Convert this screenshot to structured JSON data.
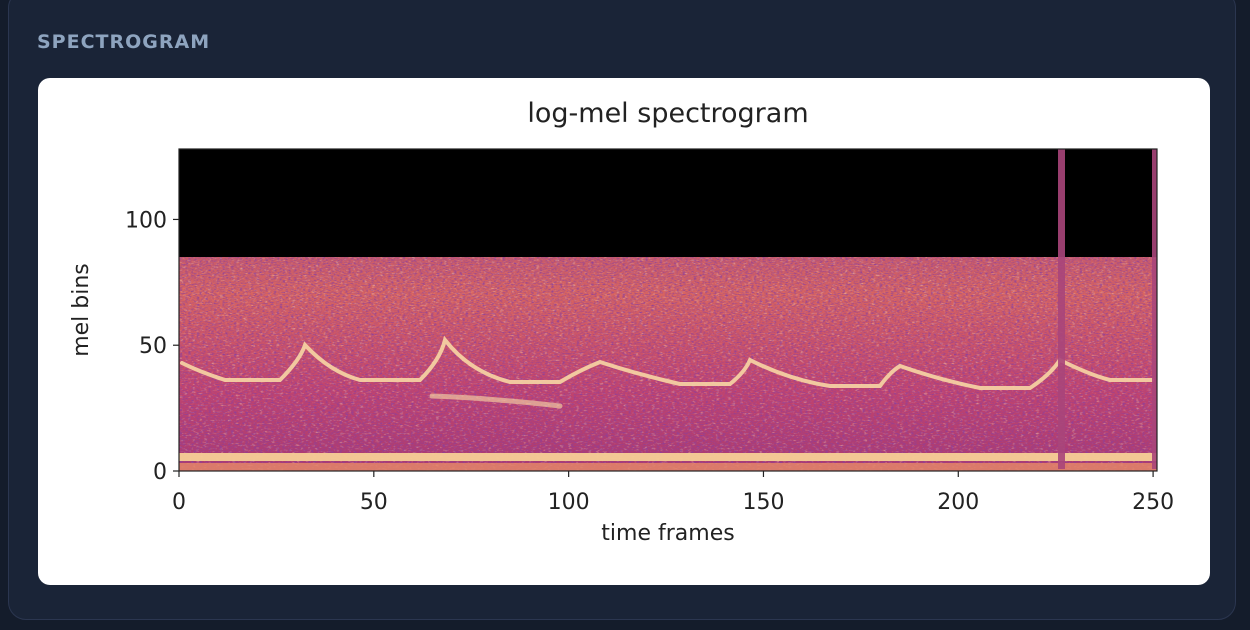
{
  "panel": {
    "title": "SPECTROGRAM"
  },
  "chart_data": {
    "type": "heatmap",
    "title": "log-mel spectrogram",
    "x_label": "time frames",
    "y_label": "mel bins",
    "xlim": [
      0,
      251
    ],
    "ylim": [
      0,
      128
    ],
    "xticks": [
      0,
      50,
      100,
      150,
      200,
      250
    ],
    "yticks": [
      0,
      50,
      100
    ]
  }
}
